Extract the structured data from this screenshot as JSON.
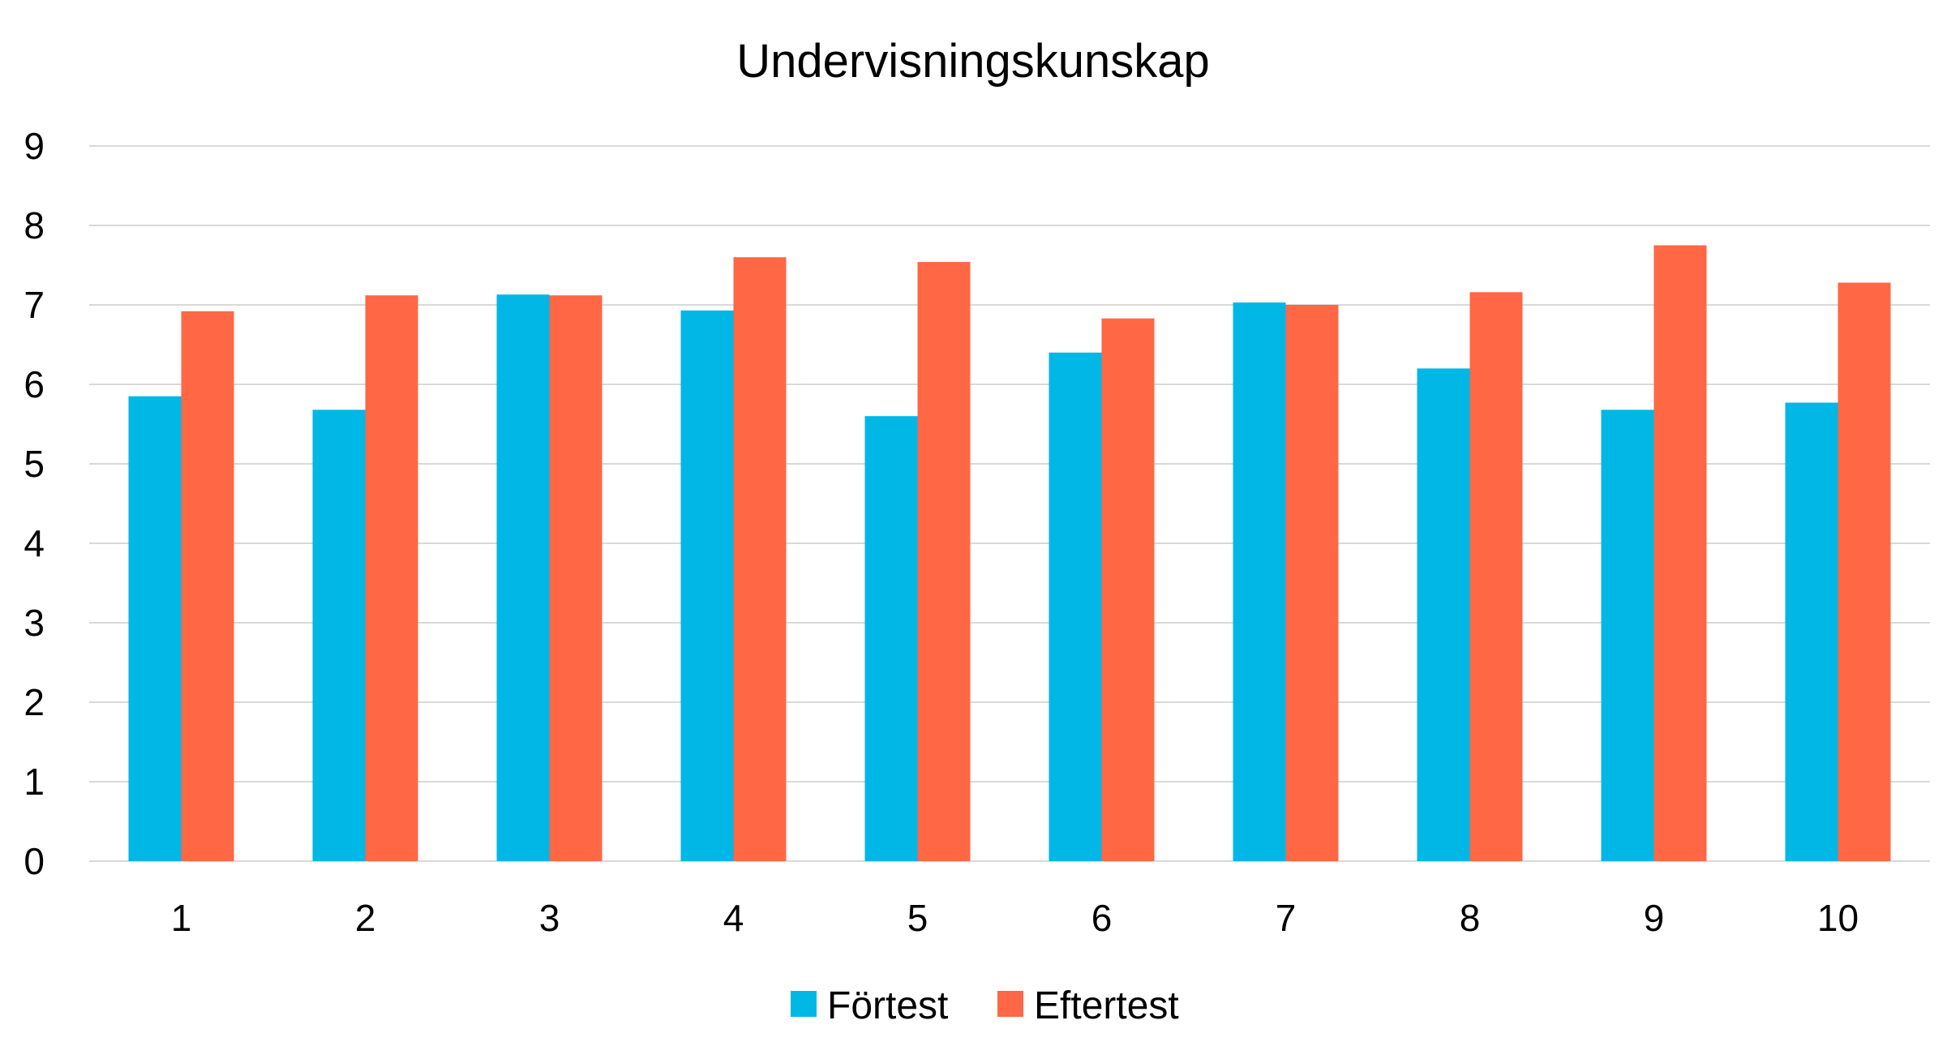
{
  "chart_data": {
    "type": "bar",
    "title": "Undervisningskunskap",
    "xlabel": "",
    "ylabel": "",
    "categories": [
      "1",
      "2",
      "3",
      "4",
      "5",
      "6",
      "7",
      "8",
      "9",
      "10"
    ],
    "series": [
      {
        "name": "Förtest",
        "color": "#00b7e6",
        "values": [
          5.85,
          5.68,
          7.13,
          6.93,
          5.6,
          6.4,
          7.03,
          6.2,
          5.68,
          5.77
        ]
      },
      {
        "name": "Eftertest",
        "color": "#ff6745",
        "values": [
          6.92,
          7.12,
          7.12,
          7.6,
          7.54,
          6.83,
          7.0,
          7.16,
          7.75,
          7.28
        ]
      }
    ],
    "ylim": [
      0,
      9
    ],
    "yticks": [
      "0",
      "1",
      "2",
      "3",
      "4",
      "5",
      "6",
      "7",
      "8",
      "9"
    ],
    "grid": true,
    "legend_position": "bottom"
  }
}
